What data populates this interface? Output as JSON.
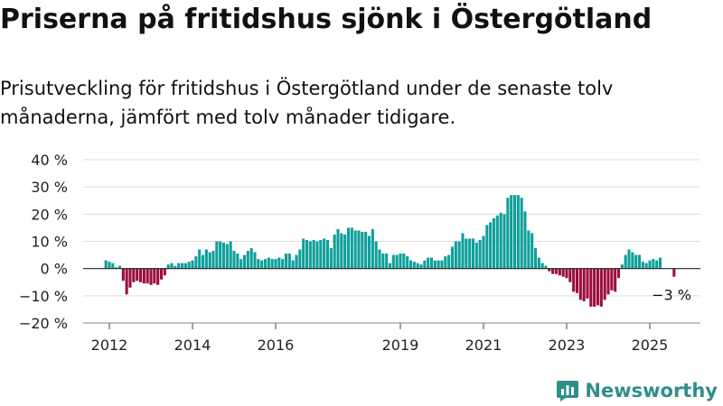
{
  "header": {
    "title": "Priserna på fritidshus sjönk i Östergötland",
    "subtitle": "Prisutveckling för fritidshus i Östergötland under de senaste tolv månaderna, jämfört med tolv månader tidigare."
  },
  "brand": {
    "name": "Newsworthy",
    "logo_icon": "bar-chart-logo-icon"
  },
  "colors": {
    "positive": "#0f9f9a",
    "negative": "#9c0d3f",
    "grid": "#dcdcdc",
    "axis": "#222222",
    "logo": "#2e8f8b"
  },
  "chart_data": {
    "type": "bar",
    "ylim": [
      -20,
      40
    ],
    "y_ticks": [
      -20,
      -10,
      0,
      10,
      20,
      30,
      40
    ],
    "y_tick_labels": [
      "−20 %",
      "−10 %",
      "0 %",
      "10 %",
      "20 %",
      "30 %",
      "40 %"
    ],
    "x_ticks": [
      "2012",
      "2014",
      "2016",
      "2019",
      "2021",
      "2023",
      "2025"
    ],
    "x_tick_dates": [
      "2012-01",
      "2014-01",
      "2016-01",
      "2019-01",
      "2021-01",
      "2023-01",
      "2025-01"
    ],
    "annotation": {
      "label": "−3 %",
      "date": "2025-08",
      "value": -3
    },
    "series": [
      {
        "values": [
          [
            "2011-12",
            3
          ],
          [
            "2012-01",
            2.5
          ],
          [
            "2012-02",
            2
          ],
          [
            "2012-03",
            0.5
          ],
          [
            "2012-04",
            1
          ],
          [
            "2012-05",
            -4.5
          ],
          [
            "2012-06",
            -9.5
          ],
          [
            "2012-07",
            -7
          ],
          [
            "2012-08",
            -5
          ],
          [
            "2012-09",
            -4.5
          ],
          [
            "2012-10",
            -5
          ],
          [
            "2012-11",
            -5.5
          ],
          [
            "2012-12",
            -5.5
          ],
          [
            "2013-01",
            -6
          ],
          [
            "2013-02",
            -5.5
          ],
          [
            "2013-03",
            -6
          ],
          [
            "2013-04",
            -4
          ],
          [
            "2013-05",
            -2.5
          ],
          [
            "2013-06",
            1.5
          ],
          [
            "2013-07",
            2
          ],
          [
            "2013-08",
            1
          ],
          [
            "2013-09",
            2
          ],
          [
            "2013-10",
            2
          ],
          [
            "2013-11",
            2
          ],
          [
            "2013-12",
            2.5
          ],
          [
            "2014-01",
            3
          ],
          [
            "2014-02",
            4.5
          ],
          [
            "2014-03",
            7
          ],
          [
            "2014-04",
            5
          ],
          [
            "2014-05",
            7
          ],
          [
            "2014-06",
            6
          ],
          [
            "2014-07",
            6.5
          ],
          [
            "2014-08",
            10
          ],
          [
            "2014-09",
            10
          ],
          [
            "2014-10",
            9.5
          ],
          [
            "2014-11",
            9
          ],
          [
            "2014-12",
            10
          ],
          [
            "2015-01",
            6.5
          ],
          [
            "2015-02",
            5.5
          ],
          [
            "2015-03",
            3.5
          ],
          [
            "2015-04",
            5
          ],
          [
            "2015-05",
            6.5
          ],
          [
            "2015-06",
            7.5
          ],
          [
            "2015-07",
            6
          ],
          [
            "2015-08",
            3.5
          ],
          [
            "2015-09",
            3
          ],
          [
            "2015-10",
            3.5
          ],
          [
            "2015-11",
            4
          ],
          [
            "2015-12",
            3.5
          ],
          [
            "2016-01",
            3.5
          ],
          [
            "2016-02",
            4
          ],
          [
            "2016-03",
            3.5
          ],
          [
            "2016-04",
            5.5
          ],
          [
            "2016-05",
            5.5
          ],
          [
            "2016-06",
            3
          ],
          [
            "2016-07",
            5
          ],
          [
            "2016-08",
            7
          ],
          [
            "2016-09",
            11
          ],
          [
            "2016-10",
            10.5
          ],
          [
            "2016-11",
            10
          ],
          [
            "2016-12",
            10.5
          ],
          [
            "2017-01",
            10
          ],
          [
            "2017-02",
            10.5
          ],
          [
            "2017-03",
            11
          ],
          [
            "2017-04",
            10.5
          ],
          [
            "2017-05",
            7.5
          ],
          [
            "2017-06",
            12.5
          ],
          [
            "2017-07",
            14.5
          ],
          [
            "2017-08",
            13
          ],
          [
            "2017-09",
            12.5
          ],
          [
            "2017-10",
            15
          ],
          [
            "2017-11",
            15
          ],
          [
            "2017-12",
            14
          ],
          [
            "2018-01",
            14
          ],
          [
            "2018-02",
            13.5
          ],
          [
            "2018-03",
            13.5
          ],
          [
            "2018-04",
            12
          ],
          [
            "2018-05",
            14.5
          ],
          [
            "2018-06",
            10
          ],
          [
            "2018-07",
            7
          ],
          [
            "2018-08",
            5.5
          ],
          [
            "2018-09",
            5.5
          ],
          [
            "2018-10",
            2
          ],
          [
            "2018-11",
            5
          ],
          [
            "2018-12",
            5
          ],
          [
            "2019-01",
            5.5
          ],
          [
            "2019-02",
            5.5
          ],
          [
            "2019-03",
            4.5
          ],
          [
            "2019-04",
            3
          ],
          [
            "2019-05",
            2.5
          ],
          [
            "2019-06",
            2
          ],
          [
            "2019-07",
            1.5
          ],
          [
            "2019-08",
            3
          ],
          [
            "2019-09",
            4
          ],
          [
            "2019-10",
            4
          ],
          [
            "2019-11",
            3
          ],
          [
            "2019-12",
            3
          ],
          [
            "2020-01",
            3
          ],
          [
            "2020-02",
            4.5
          ],
          [
            "2020-03",
            5
          ],
          [
            "2020-04",
            8
          ],
          [
            "2020-05",
            10
          ],
          [
            "2020-06",
            10
          ],
          [
            "2020-07",
            13
          ],
          [
            "2020-08",
            11
          ],
          [
            "2020-09",
            11
          ],
          [
            "2020-10",
            11
          ],
          [
            "2020-11",
            9.5
          ],
          [
            "2020-12",
            10.5
          ],
          [
            "2021-01",
            12
          ],
          [
            "2021-02",
            16
          ],
          [
            "2021-03",
            17
          ],
          [
            "2021-04",
            18.5
          ],
          [
            "2021-05",
            19.5
          ],
          [
            "2021-06",
            20.5
          ],
          [
            "2021-07",
            20
          ],
          [
            "2021-08",
            26
          ],
          [
            "2021-09",
            27
          ],
          [
            "2021-10",
            27
          ],
          [
            "2021-11",
            27
          ],
          [
            "2021-12",
            26
          ],
          [
            "2022-01",
            21
          ],
          [
            "2022-02",
            14
          ],
          [
            "2022-03",
            13
          ],
          [
            "2022-04",
            7.5
          ],
          [
            "2022-05",
            4
          ],
          [
            "2022-06",
            2
          ],
          [
            "2022-07",
            1
          ],
          [
            "2022-08",
            -1
          ],
          [
            "2022-09",
            -2
          ],
          [
            "2022-10",
            -2
          ],
          [
            "2022-11",
            -2.5
          ],
          [
            "2022-12",
            -3
          ],
          [
            "2023-01",
            -3.5
          ],
          [
            "2023-02",
            -5
          ],
          [
            "2023-03",
            -8.5
          ],
          [
            "2023-04",
            -9
          ],
          [
            "2023-05",
            -11.5
          ],
          [
            "2023-06",
            -12
          ],
          [
            "2023-07",
            -11
          ],
          [
            "2023-08",
            -14
          ],
          [
            "2023-09",
            -14
          ],
          [
            "2023-10",
            -13.5
          ],
          [
            "2023-11",
            -14
          ],
          [
            "2023-12",
            -11.5
          ],
          [
            "2024-01",
            -9.5
          ],
          [
            "2024-02",
            -8
          ],
          [
            "2024-03",
            -8.5
          ],
          [
            "2024-04",
            -3.5
          ],
          [
            "2024-05",
            1.5
          ],
          [
            "2024-06",
            5
          ],
          [
            "2024-07",
            7
          ],
          [
            "2024-08",
            6
          ],
          [
            "2024-09",
            5
          ],
          [
            "2024-10",
            5
          ],
          [
            "2024-11",
            2.5
          ],
          [
            "2024-12",
            2
          ],
          [
            "2025-01",
            3
          ],
          [
            "2025-02",
            3.5
          ],
          [
            "2025-03",
            3
          ],
          [
            "2025-04",
            4
          ]
        ]
      }
    ]
  }
}
